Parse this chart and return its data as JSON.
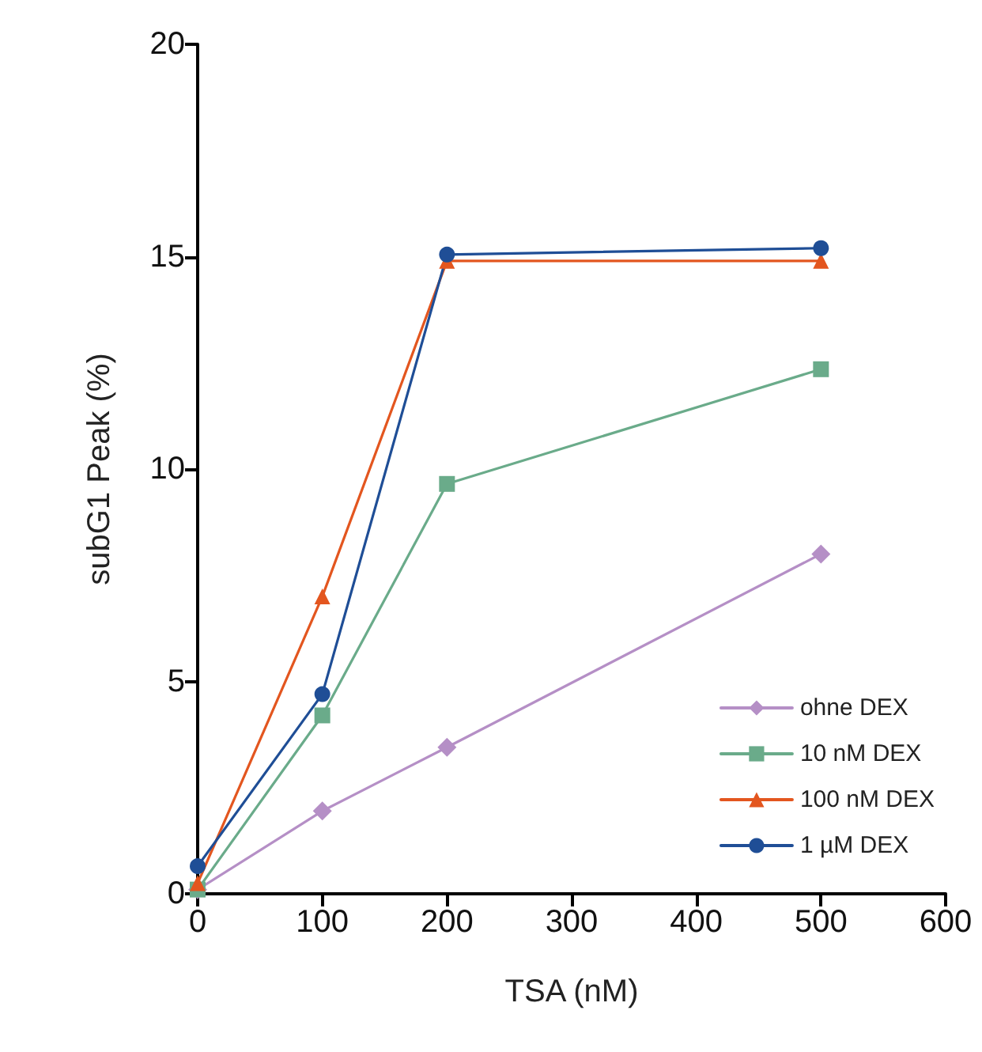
{
  "chart_data": {
    "type": "line",
    "xlabel": "TSA (nM)",
    "ylabel": "subG1 Peak (%)",
    "x": [
      0,
      100,
      200,
      500
    ],
    "series": [
      {
        "name": "ohne DEX",
        "color": "#b58fc6",
        "marker": "diamond",
        "values": [
          0.1,
          1.95,
          3.45,
          8.0
        ]
      },
      {
        "name": "10 nM DEX",
        "color": "#6aab8a",
        "marker": "square",
        "values": [
          0.1,
          4.2,
          9.65,
          12.35
        ]
      },
      {
        "name": "100 nM DEX",
        "color": "#e3561f",
        "marker": "triangle",
        "values": [
          0.25,
          7.0,
          14.9,
          14.9
        ]
      },
      {
        "name": "1 µM DEX",
        "color": "#1f4e96",
        "marker": "circle",
        "values": [
          0.65,
          4.7,
          15.05,
          15.2
        ]
      }
    ],
    "xlim": [
      0,
      600
    ],
    "xticks": [
      0,
      100,
      200,
      300,
      400,
      500,
      600
    ],
    "ylim": [
      0,
      20
    ],
    "yticks": [
      0,
      5,
      10,
      15,
      20
    ],
    "grid": false,
    "legend": "bottom right",
    "line_style": "solid"
  }
}
